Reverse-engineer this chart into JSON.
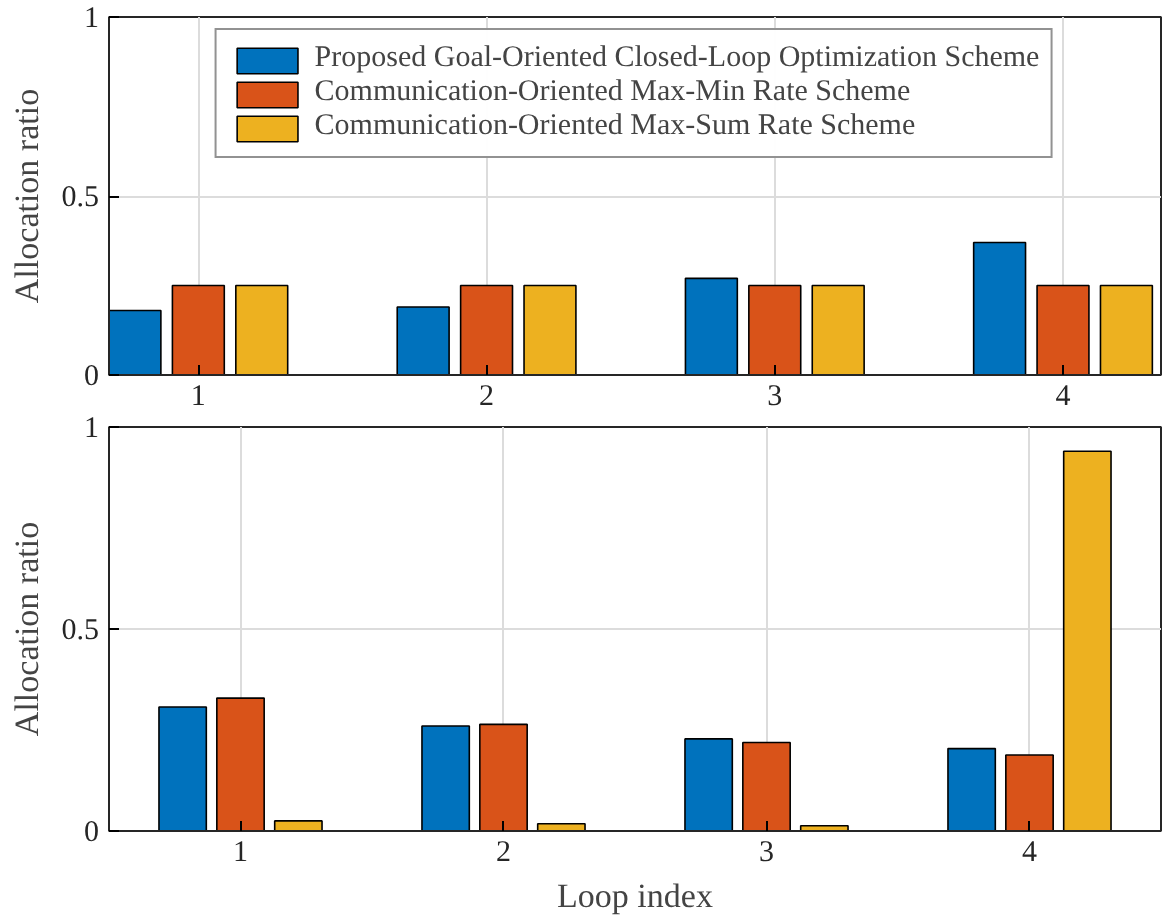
{
  "chart_data": [
    {
      "type": "bar",
      "ylabel": "Allocation ratio",
      "x": [
        1,
        2,
        3,
        4
      ],
      "xlim": [
        0.69,
        4.34
      ],
      "xticks": [
        1,
        2,
        3,
        4
      ],
      "ylim": [
        0,
        1
      ],
      "yticks": [
        0,
        0.5,
        1
      ],
      "grid": true,
      "legend": "top",
      "series": [
        {
          "name": "Proposed Goal-Oriented Closed-Loop Optimization Scheme",
          "color": "#0072bd",
          "values": [
            0.18,
            0.19,
            0.27,
            0.37
          ]
        },
        {
          "name": "Communication-Oriented Max-Min Rate Scheme",
          "color": "#d95319",
          "values": [
            0.25,
            0.25,
            0.25,
            0.25
          ]
        },
        {
          "name": "Communication-Oriented Max-Sum Rate Scheme",
          "color": "#edb120",
          "values": [
            0.25,
            0.25,
            0.25,
            0.25
          ]
        }
      ]
    },
    {
      "type": "bar",
      "ylabel": "Allocation ratio",
      "xlabel": "Loop index",
      "x": [
        1,
        2,
        3,
        4
      ],
      "xlim": [
        0.5,
        4.5
      ],
      "xticks": [
        1,
        2,
        3,
        4
      ],
      "ylim": [
        0,
        1
      ],
      "yticks": [
        0,
        0.5,
        1
      ],
      "grid": true,
      "series": [
        {
          "color": "#0072bd",
          "values": [
            0.307,
            0.26,
            0.228,
            0.204
          ]
        },
        {
          "color": "#d95319",
          "values": [
            0.329,
            0.264,
            0.219,
            0.188
          ]
        },
        {
          "color": "#edb120",
          "values": [
            0.025,
            0.018,
            0.013,
            0.94
          ]
        }
      ]
    }
  ]
}
